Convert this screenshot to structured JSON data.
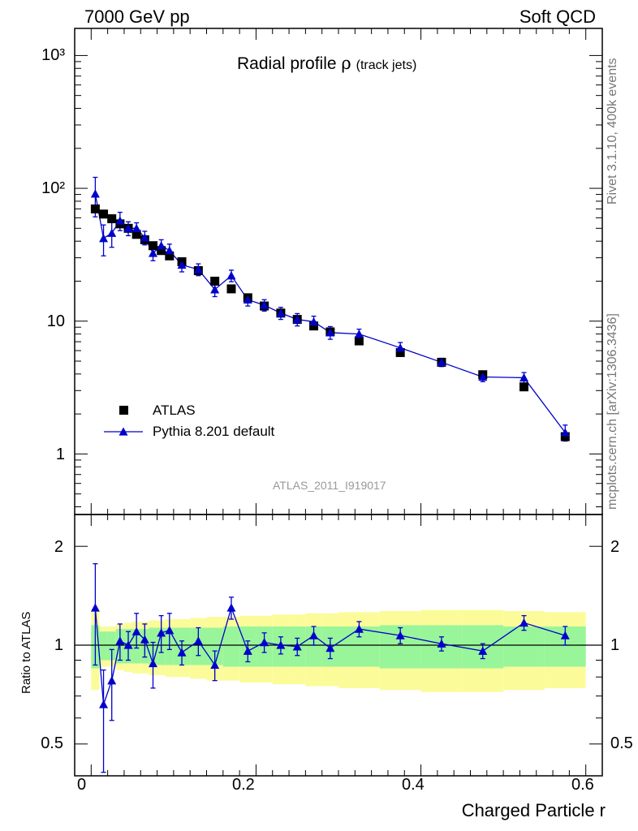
{
  "header": {
    "left": "7000 GeV pp",
    "right": "Soft QCD"
  },
  "title": {
    "main": "Radial profile ",
    "symbol": "ρ",
    "sub": "(track jets)"
  },
  "side_info": {
    "rivet": "Rivet 3.1.10,  400k events",
    "site": "mcplots.cern.ch [arXiv:1306.3436]"
  },
  "analysis_id": "ATLAS_2011_I919017",
  "colors": {
    "mc": "#0000cc",
    "data": "#000000",
    "band_inner": "#99f599",
    "band_outer": "#fbfb9a"
  },
  "chart_data": [
    {
      "type": "scatter",
      "panel": "main",
      "yscale": "log",
      "xlim": [
        -0.02,
        0.62
      ],
      "ylim": [
        0.35,
        1600
      ],
      "ytick_labels": [
        "1",
        "10",
        "10²",
        "10³"
      ],
      "xlabel": "",
      "ylabel": "",
      "legend": {
        "placement": "bottom-left",
        "entries": [
          "ATLAS",
          "Pythia 8.201 default"
        ]
      },
      "x": [
        0.005,
        0.015,
        0.025,
        0.035,
        0.045,
        0.055,
        0.065,
        0.075,
        0.085,
        0.095,
        0.11,
        0.13,
        0.15,
        0.17,
        0.19,
        0.21,
        0.23,
        0.25,
        0.27,
        0.29,
        0.325,
        0.375,
        0.425,
        0.475,
        0.525,
        0.575
      ],
      "series": [
        {
          "name": "ATLAS",
          "marker": "square",
          "values": [
            70,
            64,
            59,
            54,
            50,
            45,
            41,
            37,
            34,
            31,
            28,
            24,
            20,
            17.5,
            15,
            13,
            11.5,
            10.3,
            9.2,
            8.3,
            7.1,
            5.8,
            4.9,
            3.95,
            3.2,
            1.35
          ]
        },
        {
          "name": "Pythia 8.201 default",
          "marker": "triangle",
          "values": [
            91,
            42,
            46,
            57,
            50,
            50,
            42.5,
            32.5,
            37,
            34,
            26.5,
            24.5,
            17.3,
            22,
            14.5,
            13.2,
            11.5,
            10.3,
            9.9,
            8.2,
            8.0,
            6.3,
            4.9,
            3.8,
            3.75,
            1.45
          ],
          "errors": [
            30,
            11,
            10,
            9,
            6,
            5,
            5,
            4,
            4,
            4,
            3,
            2.5,
            2,
            2.2,
            1.5,
            1.3,
            1.2,
            1.1,
            1,
            0.9,
            0.7,
            0.6,
            0.35,
            0.3,
            0.35,
            0.2
          ]
        }
      ]
    },
    {
      "type": "scatter",
      "panel": "ratio",
      "yscale": "log",
      "xlim": [
        -0.02,
        0.62
      ],
      "ylim": [
        0.4,
        2.5
      ],
      "ylabel": "Ratio to ATLAS",
      "xlabel": "Charged Particle r",
      "xticks": [
        0,
        0.2,
        0.4,
        0.6
      ],
      "xtick_labels": [
        "0",
        "0.2",
        "0.4",
        "0.6"
      ],
      "yticks": [
        0.5,
        1,
        2
      ],
      "ytick_labels": [
        "0.5",
        "1",
        "2"
      ],
      "x": [
        0.005,
        0.015,
        0.025,
        0.035,
        0.045,
        0.055,
        0.065,
        0.075,
        0.085,
        0.095,
        0.11,
        0.13,
        0.15,
        0.17,
        0.19,
        0.21,
        0.23,
        0.25,
        0.27,
        0.29,
        0.325,
        0.375,
        0.425,
        0.475,
        0.525,
        0.575
      ],
      "bin_edges": [
        0.0,
        0.01,
        0.02,
        0.03,
        0.04,
        0.05,
        0.06,
        0.07,
        0.08,
        0.09,
        0.1,
        0.12,
        0.14,
        0.16,
        0.18,
        0.2,
        0.22,
        0.24,
        0.26,
        0.28,
        0.3,
        0.35,
        0.4,
        0.45,
        0.5,
        0.55,
        0.6
      ],
      "band_inner": [
        0.15,
        0.1,
        0.1,
        0.12,
        0.12,
        0.12,
        0.12,
        0.13,
        0.13,
        0.13,
        0.13,
        0.13,
        0.13,
        0.14,
        0.14,
        0.14,
        0.14,
        0.14,
        0.14,
        0.14,
        0.14,
        0.15,
        0.15,
        0.15,
        0.14,
        0.14
      ],
      "band_outer": [
        0.27,
        0.14,
        0.14,
        0.16,
        0.17,
        0.18,
        0.18,
        0.19,
        0.19,
        0.2,
        0.2,
        0.21,
        0.22,
        0.22,
        0.23,
        0.23,
        0.24,
        0.24,
        0.25,
        0.25,
        0.26,
        0.27,
        0.28,
        0.28,
        0.27,
        0.26
      ],
      "series": [
        {
          "name": "Pythia 8.201 default",
          "marker": "triangle",
          "values": [
            1.3,
            0.66,
            0.78,
            1.03,
            1.0,
            1.1,
            1.04,
            0.88,
            1.09,
            1.11,
            0.95,
            1.03,
            0.87,
            1.3,
            0.96,
            1.02,
            1.0,
            0.99,
            1.07,
            0.98,
            1.12,
            1.07,
            1.01,
            0.96,
            1.17,
            1.07
          ],
          "err_low": [
            0.43,
            0.25,
            0.19,
            0.13,
            0.1,
            0.12,
            0.12,
            0.14,
            0.14,
            0.14,
            0.08,
            0.1,
            0.09,
            0.1,
            0.07,
            0.07,
            0.06,
            0.06,
            0.07,
            0.07,
            0.06,
            0.06,
            0.05,
            0.05,
            0.06,
            0.07
          ],
          "err_high": [
            0.47,
            0.18,
            0.19,
            0.13,
            0.1,
            0.15,
            0.12,
            0.14,
            0.14,
            0.14,
            0.08,
            0.1,
            0.09,
            0.1,
            0.07,
            0.07,
            0.06,
            0.06,
            0.07,
            0.07,
            0.06,
            0.06,
            0.05,
            0.05,
            0.06,
            0.07
          ]
        }
      ]
    }
  ]
}
